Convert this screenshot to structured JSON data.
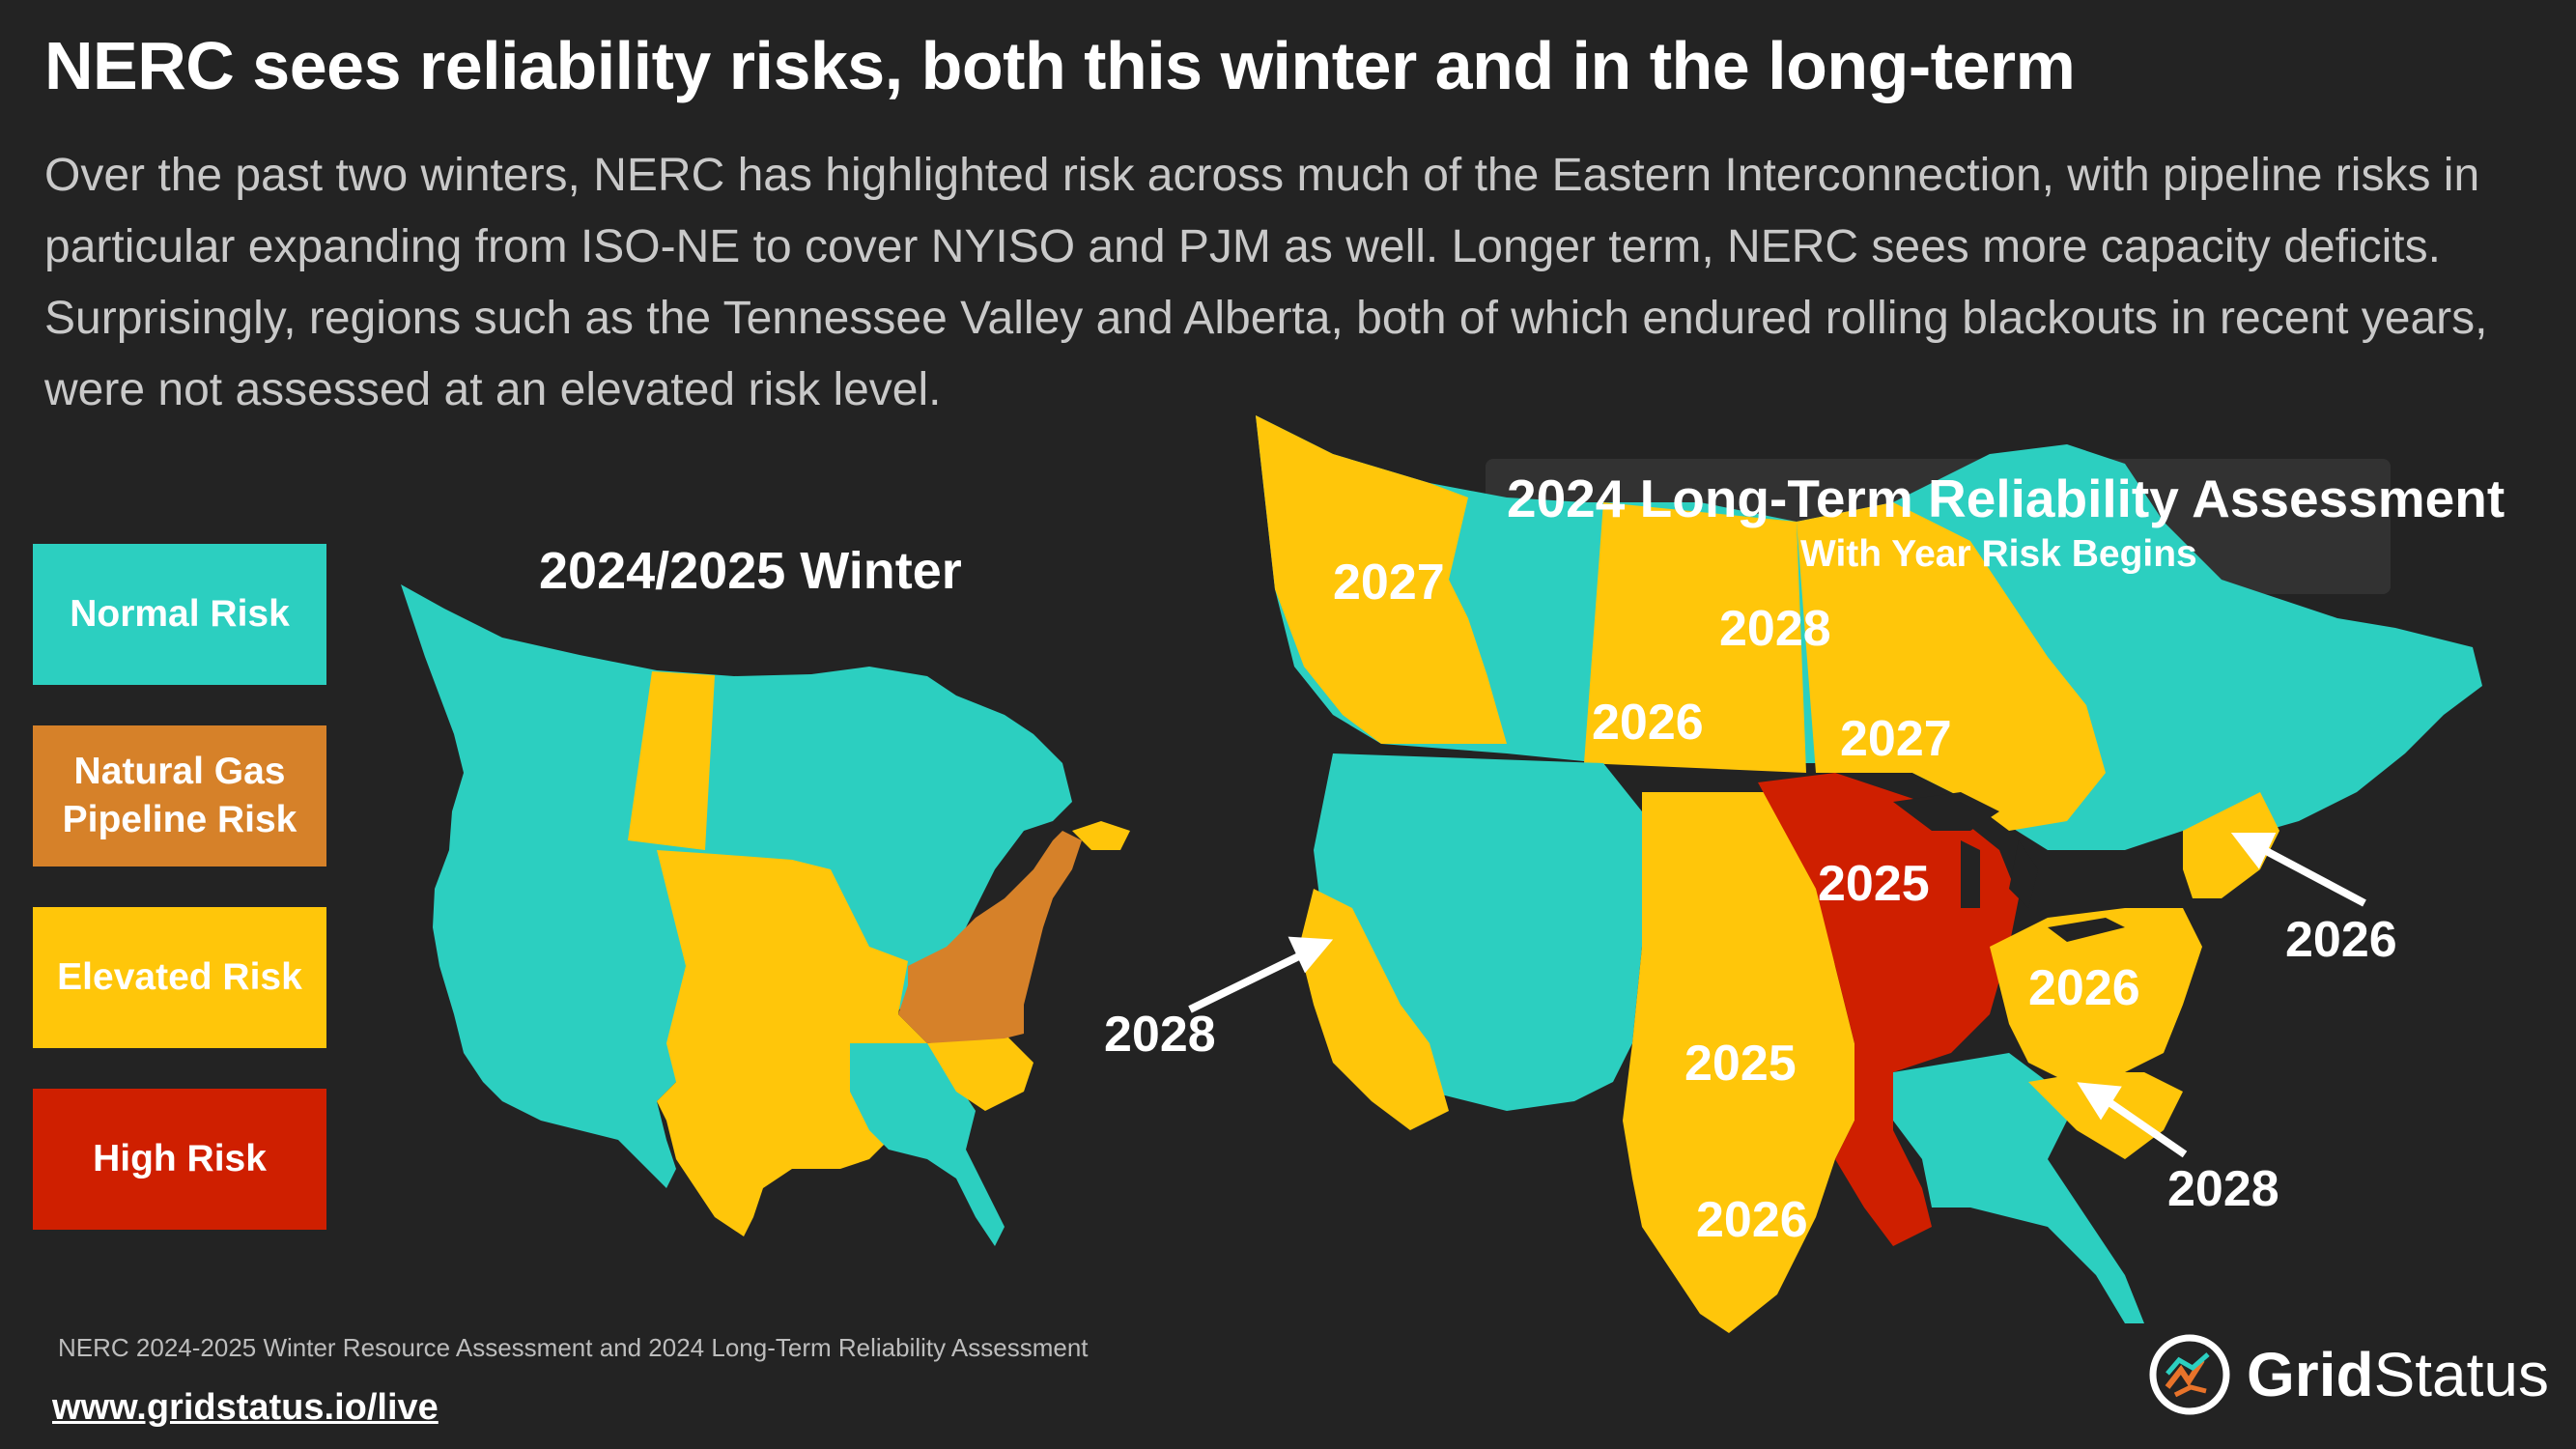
{
  "title": "NERC sees reliability risks, both this winter and in the long-term",
  "subtitle": "Over the past two winters, NERC has highlighted risk across much of the Eastern Interconnection, with pipeline risks in particular expanding from ISO-NE to cover NYISO and PJM as well. Longer term, NERC sees more capacity deficits. Surprisingly, regions such as the Tennessee Valley and Alberta, both of which endured rolling blackouts in recent years, were not assessed at an elevated risk level.",
  "legend": {
    "normal": "Normal Risk",
    "pipeline": "Natural Gas Pipeline Risk",
    "elevated": "Elevated Risk",
    "high": "High Risk"
  },
  "colors": {
    "normal": "#2ccfc0",
    "pipeline": "#d68129",
    "elevated": "#ffc60a",
    "high": "#cf1f00",
    "background": "#232323"
  },
  "winter_map": {
    "title": "2024/2025 Winter"
  },
  "longterm_map": {
    "title": "2024 Long-Term Reliability Assessment",
    "subtitle": "With Year Risk Begins",
    "labels": {
      "bc": "2027",
      "sask": "2028",
      "alberta_sask": "2026",
      "ontario": "2027",
      "miso": "2025",
      "ercot_spp": "2025",
      "texas": "2026",
      "pjm": "2026",
      "california": "2028",
      "newengland": "2026",
      "southeast": "2028"
    }
  },
  "source": "NERC 2024-2025 Winter Resource Assessment and 2024 Long-Term Reliability Assessment",
  "url": "www.gridstatus.io/live",
  "brand": {
    "part1": "Grid",
    "part2": "Status",
    "icon": "gridstatus-logo-icon"
  }
}
